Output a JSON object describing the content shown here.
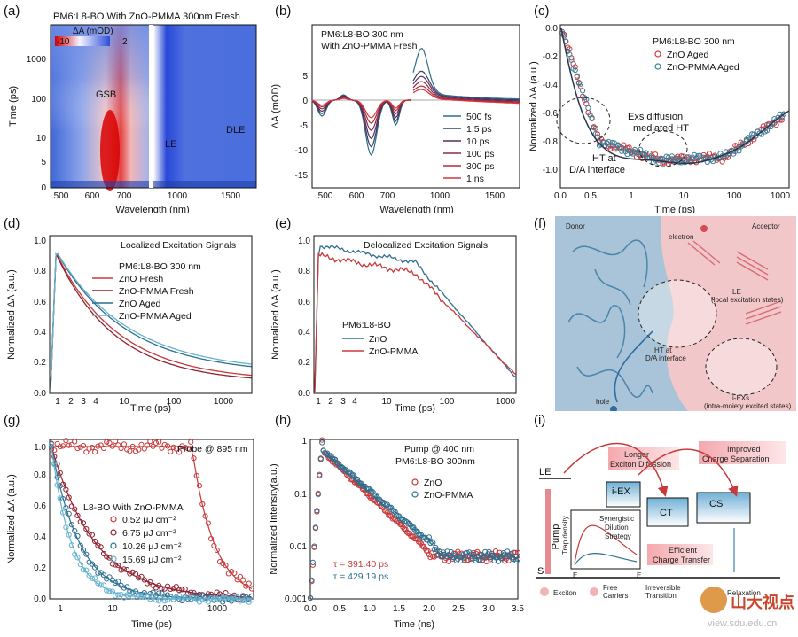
{
  "panel_labels": [
    "(a)",
    "(b)",
    "(c)",
    "(d)",
    "(e)",
    "(f)",
    "(g)",
    "(h)",
    "(i)"
  ],
  "a": {
    "title": "PM6:L8-BO With ZnO-PMMA 300nm Fresh",
    "colorbar_label": "ΔA (mOD)",
    "cb_min": "-10",
    "cb_max": "2",
    "ylabel": "Time (ps)",
    "xlabel": "Wavelength (nm)",
    "yticks": [
      "0",
      "5",
      "10",
      "100",
      "1000"
    ],
    "xticks": [
      "500",
      "600",
      "700",
      "1000",
      "1500"
    ],
    "labels": {
      "gsb": "GSB",
      "le": "LE",
      "dle": "DLE"
    }
  },
  "b": {
    "title1": "PM6:L8-BO 300 nm",
    "title2": "With ZnO-PMMA  Fresh",
    "ylabel": "ΔA (mOD)",
    "xlabel": "Wavelength (nm)",
    "yticks": [
      "5",
      "0",
      "-5",
      "-10",
      "-15"
    ],
    "xticks": [
      "500",
      "600",
      "700",
      "1000",
      "1500"
    ],
    "legend": [
      "500 fs",
      "1.5 ps",
      "10 ps",
      "100 ps",
      "300 ps",
      "1 ns"
    ],
    "colors": [
      "#2f6f8a",
      "#3a3f66",
      "#5a2d5a",
      "#8a2b4a",
      "#b52a3a",
      "#d8353a"
    ]
  },
  "c": {
    "title": "PM6:L8-BO 300 nm",
    "legend": [
      "ZnO Aged",
      "ZnO-PMMA Aged"
    ],
    "ylabel": "Normalized ΔA (a.u.)",
    "xlabel": "Time (ps)",
    "yticks": [
      "0.0",
      "-0.2",
      "-0.4",
      "-0.6",
      "-0.8",
      "-1.0"
    ],
    "xticks": [
      "0.0",
      "0.5",
      "1",
      "10",
      "100",
      "1000"
    ],
    "ann1a": "HT at",
    "ann1b": "D/A interface",
    "ann2a": "Exs diffusion",
    "ann2b": "mediated  HT"
  },
  "d": {
    "title": "Localized Excitation Signals",
    "legend_title": "PM6:L8-BO 300 nm",
    "legend": [
      "ZnO Fresh",
      "ZnO-PMMA Fresh",
      "ZnO Aged",
      "ZnO-PMMA Aged"
    ],
    "colors": [
      "#c8393b",
      "#8f2330",
      "#2e6f8e",
      "#66b2cf"
    ],
    "ylabel": "Normalized ΔA (a.u.)",
    "xlabel": "Time (ps)",
    "yticks": [
      "0.0",
      "0.2",
      "0.4",
      "0.6",
      "0.8",
      "1.0"
    ],
    "xticks": [
      "1",
      "2",
      "3",
      "4",
      "10",
      "100",
      "1000"
    ]
  },
  "e": {
    "title": "Delocalized Excitation Signals",
    "legend_title": "PM6:L8-BO",
    "legend": [
      "ZnO",
      "ZnO-PMMA"
    ],
    "colors": [
      "#2e6f8e",
      "#c8393b"
    ],
    "ylabel": "Normalized ΔA (a.u.)",
    "xlabel": "Time (ps)",
    "yticks": [
      "0.0",
      "0.2",
      "0.4",
      "0.6",
      "0.8",
      "1.0"
    ],
    "xticks": [
      "1",
      "2",
      "3",
      "4",
      "10",
      "100",
      "1000"
    ]
  },
  "f": {
    "donor": "Donor",
    "acceptor": "Acceptor",
    "electron": "electron",
    "le1": "LE",
    "le2": "(local excitation states)",
    "ht1": "HT at",
    "ht2": "D/A interface",
    "iex1": "i-EXs",
    "iex2": "(intra-moiety excited states)",
    "hole": "hole"
  },
  "g": {
    "probe": "Probe @ 895 nm",
    "legend_title": "L8-BO With ZnO-PMMA",
    "legend": [
      "0.52 μJ cm⁻²",
      "6.75 μJ cm⁻²",
      "10.26 μJ cm⁻²",
      "15.69 μJ cm⁻²"
    ],
    "colors": [
      "#c8393b",
      "#8f2330",
      "#2e6f8e",
      "#66b2cf"
    ],
    "ylabel": "Normalized ΔA (a.u.)",
    "xlabel": "Time (ps)",
    "yticks": [
      "0.0",
      "0.2",
      "0.4",
      "0.6",
      "0.8",
      "1.0"
    ],
    "xticks": [
      "1",
      "10",
      "100",
      "1000"
    ]
  },
  "h": {
    "title1": "Pump @ 400 nm",
    "title2": "PM6:L8-BO 300nm",
    "legend": [
      "ZnO",
      "ZnO-PMMA"
    ],
    "tau1": "τ = 391.40 ps",
    "tau2": "τ = 429.19 ps",
    "ylabel": "Normalized Intensity(a.u.)",
    "xlabel": "Time (ns)",
    "yticks": [
      "1",
      "0.1",
      "0.01",
      "0.001"
    ],
    "xticks": [
      "0.0",
      "0.5",
      "1.0",
      "1.5",
      "2.0",
      "2.5",
      "3.0",
      "3.5"
    ]
  },
  "i": {
    "le": "LE",
    "iex": "i-EX",
    "ct": "CT",
    "cs": "CS",
    "s0": "S",
    "longer1": "Longer",
    "longer2": "Exciton Difussion",
    "improved1": "Improved",
    "improved2": "Charge  Separation",
    "pump": "Pump",
    "trap": "Trap density",
    "syn1": "Synergistic",
    "syn2": "Dilution",
    "syn3": "Strategy",
    "eff1": "Efficient",
    "eff2": "Charge  Transfer",
    "elumo": "E",
    "ehomo": "E",
    "exciton": "Exciton",
    "free1": "Free",
    "free2": "Carriers",
    "irr1": "Irreversible",
    "irr2": "Transition",
    "relax": "Relaxation"
  },
  "watermark": {
    "text": "山大视点",
    "url": "view.sdu.edu.cn"
  }
}
